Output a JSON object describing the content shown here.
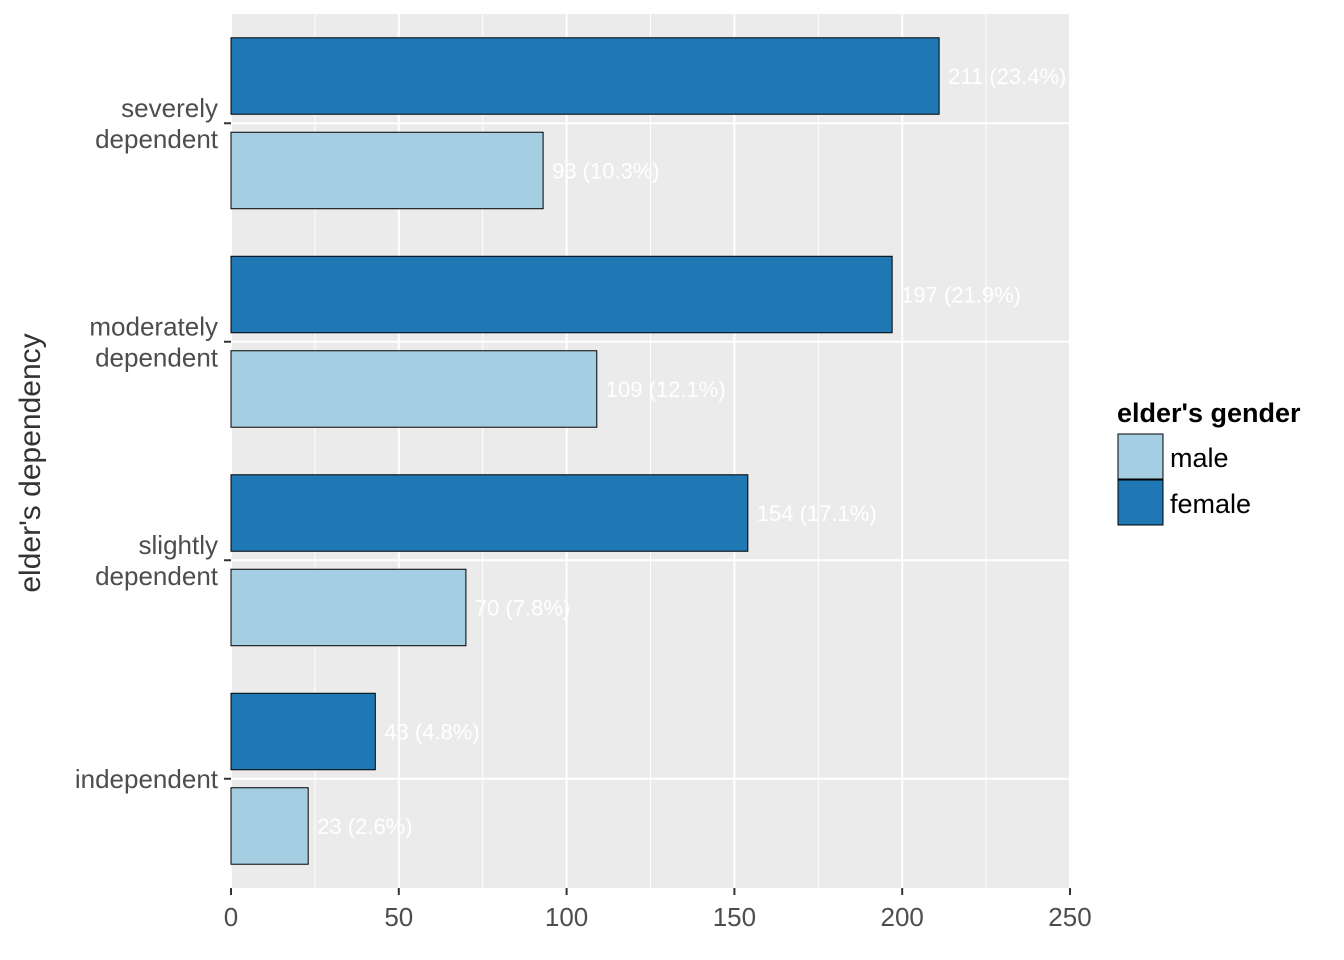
{
  "chart_data": {
    "type": "bar",
    "orientation": "horizontal",
    "categories": [
      [
        "independent"
      ],
      [
        "slightly",
        "dependent"
      ],
      [
        "moderately",
        "dependent"
      ],
      [
        "severely",
        "dependent"
      ]
    ],
    "series": [
      {
        "name": "male",
        "color": "#a6cee3",
        "values": [
          23,
          70,
          109,
          93
        ],
        "labels": [
          "23 (2.6%)",
          "70 (7.8%)",
          "109 (12.1%)",
          "93 (10.3%)"
        ]
      },
      {
        "name": "female",
        "color": "#1f78b4",
        "values": [
          43,
          154,
          197,
          211
        ],
        "labels": [
          "43 (4.8%)",
          "154 (17.1%)",
          "197 (21.9%)",
          "211 (23.4%)"
        ]
      }
    ],
    "xlabel": "",
    "ylabel": "elder's dependency",
    "xlim": [
      0,
      250
    ],
    "xticks": [
      0,
      50,
      100,
      150,
      200,
      250
    ],
    "grid": true,
    "legend": {
      "title": "elder's gender",
      "position": "right"
    },
    "panel_background": "#ebebeb"
  }
}
